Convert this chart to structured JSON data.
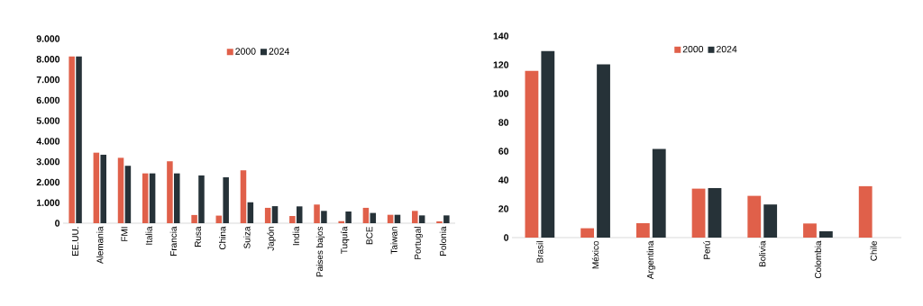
{
  "chart_data": [
    {
      "type": "bar",
      "categories": [
        "EE.UU.",
        "Alemania",
        "FMI",
        "Italia",
        "Francia",
        "Rusa",
        "China",
        "Suiza",
        "Japón",
        "India",
        "Paises bajos",
        "Tuquía",
        "BCE",
        "Taiwan",
        "Portugal",
        "Polonia"
      ],
      "series": [
        {
          "name": "2000",
          "color": "#e0604a",
          "values": [
            8130,
            3440,
            3190,
            2430,
            3020,
            400,
            370,
            2580,
            750,
            350,
            910,
            100,
            750,
            410,
            600,
            90
          ]
        },
        {
          "name": "2024",
          "color": "#263238",
          "values": [
            8130,
            3340,
            2800,
            2430,
            2430,
            2330,
            2240,
            1020,
            830,
            820,
            600,
            570,
            500,
            410,
            380,
            380
          ]
        }
      ],
      "ylim": [
        0,
        9000
      ],
      "yticks": [
        {
          "value": 0,
          "label": "0"
        },
        {
          "value": 1000,
          "label": "1.000"
        },
        {
          "value": 2000,
          "label": "2.000"
        },
        {
          "value": 3000,
          "label": "3.000"
        },
        {
          "value": 4000,
          "label": "4.000"
        },
        {
          "value": 5000,
          "label": "5.000"
        },
        {
          "value": 6000,
          "label": "6.000"
        },
        {
          "value": 7000,
          "label": "7.000"
        },
        {
          "value": 8000,
          "label": "8.000"
        },
        {
          "value": 9000,
          "label": "9.000"
        }
      ],
      "legend": "top"
    },
    {
      "type": "bar",
      "categories": [
        "Brasil",
        "México",
        "Argentina",
        "Perú",
        "Bolivia",
        "Colombia",
        "Chile"
      ],
      "series": [
        {
          "name": "2000",
          "color": "#e0604a",
          "values": [
            115.8,
            6.5,
            10,
            34,
            29,
            9.8,
            35.7
          ]
        },
        {
          "name": "2024",
          "color": "#263238",
          "values": [
            129.5,
            120.3,
            61.5,
            34.4,
            23,
            4.4,
            null
          ]
        }
      ],
      "ylim": [
        0,
        140
      ],
      "yticks": [
        0,
        20,
        40,
        60,
        80,
        100,
        120,
        140
      ],
      "legend": "top"
    }
  ]
}
